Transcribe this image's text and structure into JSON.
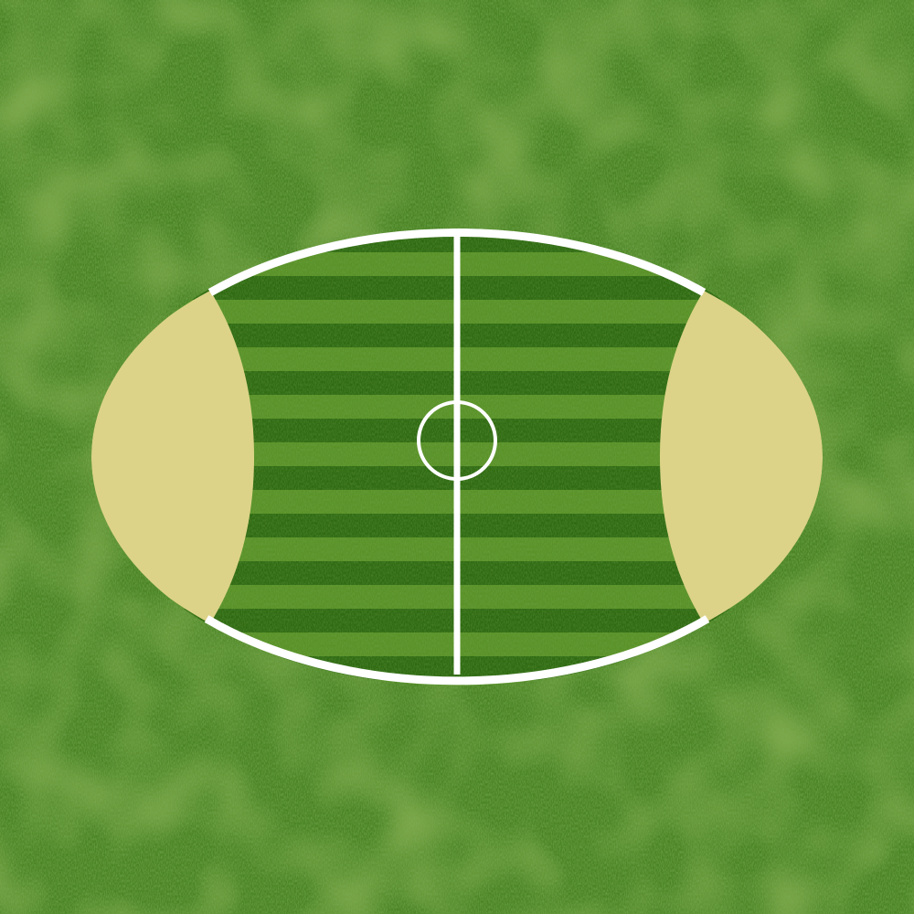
{
  "scene": {
    "kind": "top-down oval sports field",
    "colors": {
      "grass_base": "#4a8424",
      "grass_dark": "#3a6d18",
      "grass_light": "#6e9e34",
      "stripe_dark": "#2f6a12",
      "stripe_light": "#5a9228",
      "end_zone": "#dcd388",
      "line": "#ffffff"
    },
    "features": {
      "boundary_line": true,
      "halfway_line": true,
      "center_circle": true,
      "end_zones": [
        "left",
        "right"
      ],
      "mown_stripes": "horizontal"
    }
  }
}
